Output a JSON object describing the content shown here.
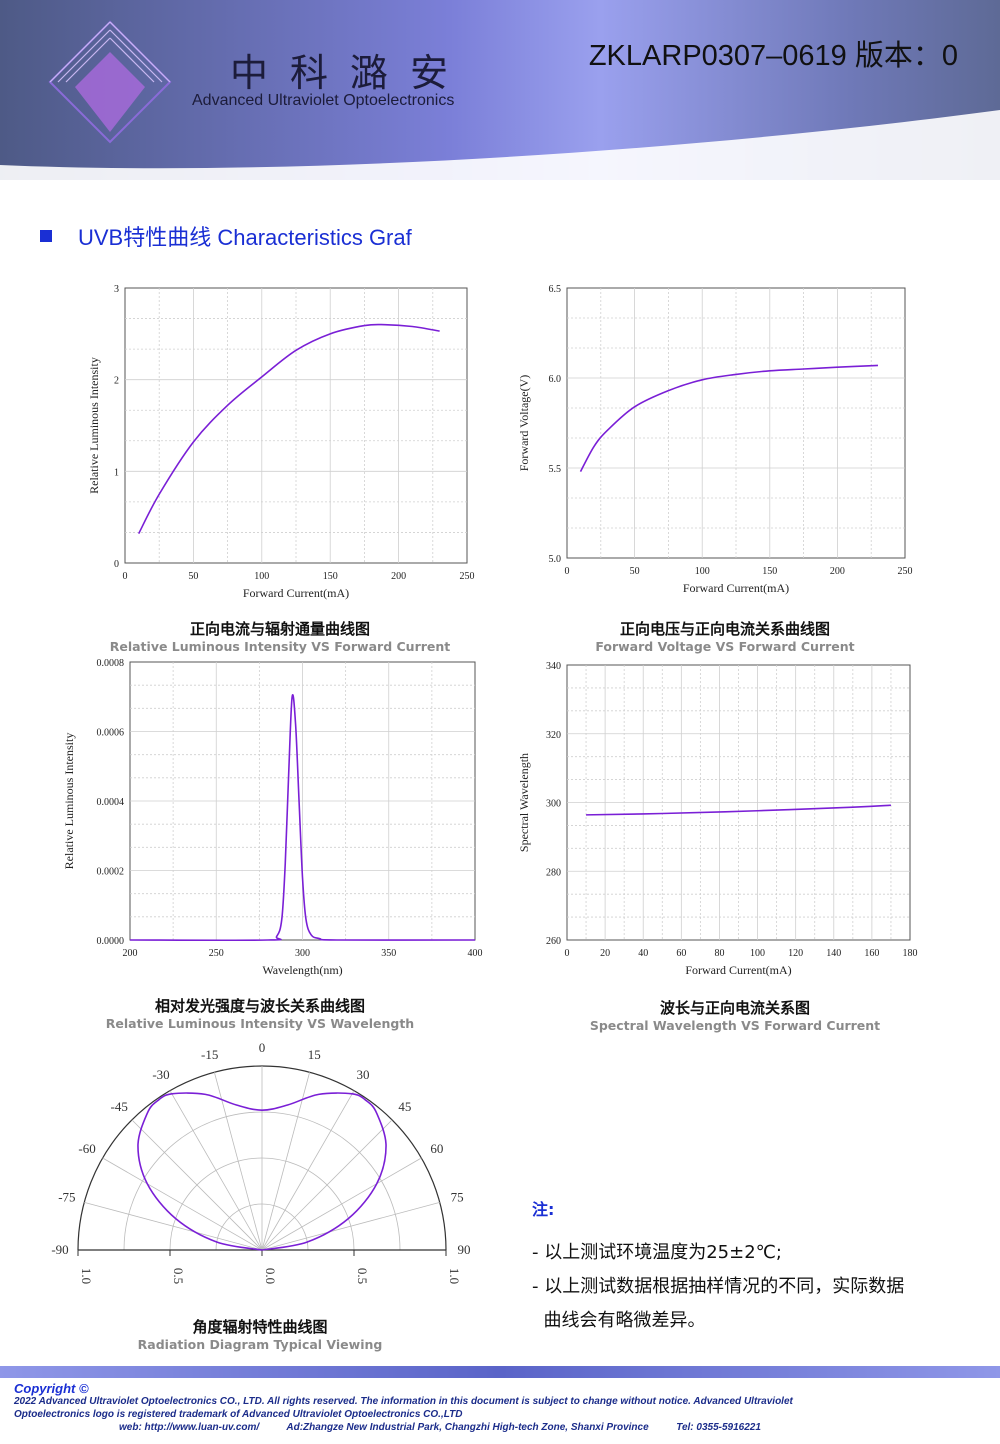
{
  "header": {
    "brand_cn": "中科潞安",
    "brand_en": "Advanced Ultraviolet Optoelectronics",
    "doc_no": "ZKLARP0307–0619 版本：0"
  },
  "section_title": "UVB特性曲线 Characteristics Graf",
  "chart_data": [
    {
      "type": "line",
      "xlabel": "Forward Current(mA)",
      "ylabel": "Relative Luminous Intensity",
      "xlim": [
        0,
        250
      ],
      "ylim": [
        0,
        3
      ],
      "xticks": [
        "0",
        "50",
        "100",
        "150",
        "200",
        "250"
      ],
      "yticks": [
        "0",
        "1",
        "2",
        "3"
      ],
      "x": [
        10,
        25,
        50,
        75,
        100,
        125,
        150,
        175,
        190,
        210,
        230
      ],
      "y": [
        0.32,
        0.75,
        1.32,
        1.72,
        2.03,
        2.32,
        2.5,
        2.59,
        2.6,
        2.58,
        2.53
      ],
      "caption_cn": "正向电流与辐射通量曲线图",
      "caption_en": "Relative Luminous Intensity VS Forward Current"
    },
    {
      "type": "line",
      "xlabel": "Forward Current(mA)",
      "ylabel": "Forward Voltage(V)",
      "xlim": [
        0,
        250
      ],
      "ylim": [
        5.0,
        6.5
      ],
      "xticks": [
        "0",
        "50",
        "100",
        "150",
        "200",
        "250"
      ],
      "yticks": [
        "5.0",
        "5.5",
        "6.0",
        "6.5"
      ],
      "x": [
        10,
        20,
        30,
        50,
        75,
        100,
        125,
        150,
        175,
        200,
        230
      ],
      "y": [
        5.48,
        5.62,
        5.71,
        5.84,
        5.93,
        5.99,
        6.02,
        6.04,
        6.05,
        6.06,
        6.07
      ],
      "caption_cn": "正向电压与正向电流关系曲线图",
      "caption_en": "Forward Voltage VS Forward Current"
    },
    {
      "type": "line",
      "xlabel": "Wavelength(nm)",
      "ylabel": "Relative Luminous Intensity",
      "xlim": [
        200,
        400
      ],
      "ylim": [
        0,
        0.0008
      ],
      "xticks": [
        "200",
        "250",
        "300",
        "350",
        "400"
      ],
      "yticks": [
        "0.0000",
        "0.0002",
        "0.0004",
        "0.0006",
        "0.0008"
      ],
      "x": [
        200,
        280,
        285,
        288,
        290,
        292,
        294,
        296,
        298,
        300,
        302,
        305,
        310,
        320,
        400
      ],
      "y": [
        0,
        0,
        1e-05,
        6e-05,
        0.00022,
        0.00048,
        0.0007,
        0.00062,
        0.0004,
        0.00018,
        6e-05,
        1.5e-05,
        4e-06,
        0,
        0
      ],
      "caption_cn": "相对发光强度与波长关系曲线图",
      "caption_en": "Relative Luminous Intensity VS Wavelength"
    },
    {
      "type": "line",
      "xlabel": "Forward Current(mA)",
      "ylabel": "Spectral Wavelength",
      "xlim": [
        0,
        180
      ],
      "ylim": [
        250,
        350
      ],
      "xticks": [
        "0",
        "20",
        "40",
        "60",
        "80",
        "100",
        "120",
        "140",
        "160",
        "180"
      ],
      "yticks": [
        "260",
        "280",
        "300",
        "320",
        "340"
      ],
      "x": [
        10,
        50,
        100,
        150,
        170
      ],
      "y": [
        295.5,
        296,
        297,
        298.3,
        299
      ],
      "caption_cn": "波长与正向电流关系图",
      "caption_en": "Spectral Wavelength VS Forward Current"
    },
    {
      "type": "polar",
      "angle_labels": [
        "-90",
        "-75",
        "-60",
        "-45",
        "-30",
        "-15",
        "0",
        "15",
        "30",
        "45",
        "60",
        "75",
        "90"
      ],
      "radial_labels": [
        "1.0",
        "0.5",
        "0.0",
        "0.5",
        "1.0"
      ],
      "angles": [
        -90,
        -80,
        -70,
        -60,
        -50,
        -40,
        -35,
        -30,
        -20,
        -10,
        0,
        10,
        20,
        30,
        35,
        40,
        50,
        60,
        70,
        80,
        90
      ],
      "values": [
        0,
        0.25,
        0.5,
        0.72,
        0.88,
        0.97,
        0.99,
        0.98,
        0.9,
        0.8,
        0.76,
        0.8,
        0.9,
        0.98,
        0.99,
        0.97,
        0.88,
        0.72,
        0.5,
        0.25,
        0
      ],
      "caption_cn": "角度辐射特性曲线图",
      "caption_en": "Radiation Diagram Typical Viewing"
    }
  ],
  "notes": {
    "title": "注:",
    "items": [
      "- 以上测试环境温度为25±2℃;",
      "- 以上测试数据根据抽样情况的不同，实际数据",
      "  曲线会有略微差异。"
    ]
  },
  "footer": {
    "copyright": "Copyright ©",
    "line1": "2022 Advanced Ultraviolet Optoelectronics CO., LTD. All rights reserved. The information in this document is subject to change without notice. Advanced Ultraviolet",
    "line2": "Optoelectronics logo is registered trademark of Advanced Ultraviolet Optoelectronics CO.,LTD",
    "web": "web: http://www.luan-uv.com/",
    "address": "Ad:Zhangze New Industrial Park, Changzhi High-tech Zone, Shanxi Province",
    "tel": "Tel:  0355-5916221"
  },
  "colors": {
    "curve": "#7a1fd6",
    "accent": "#1a2fd4"
  }
}
